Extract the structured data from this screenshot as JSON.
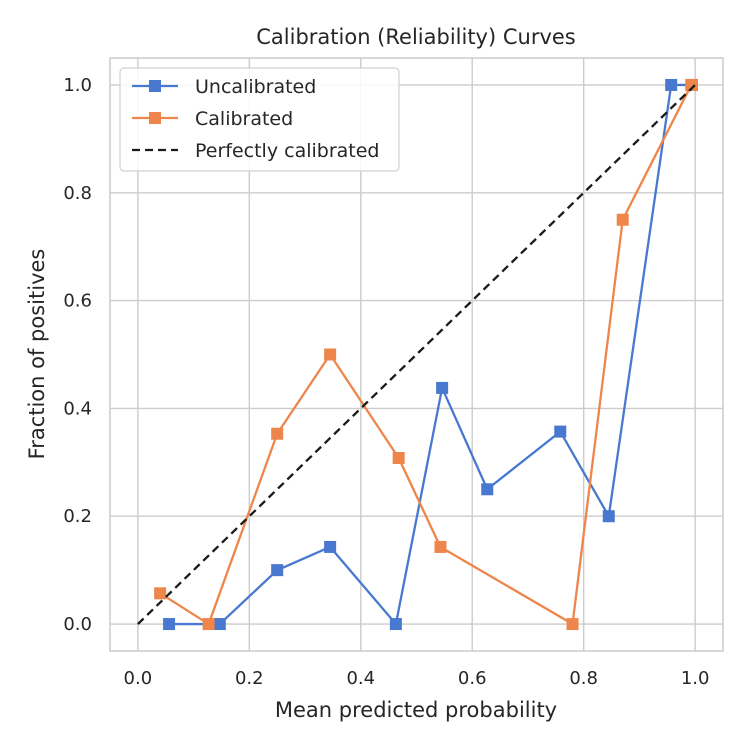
{
  "chart_data": {
    "type": "line",
    "title": "Calibration (Reliability) Curves",
    "xlabel": "Mean predicted probability",
    "ylabel": "Fraction of positives",
    "xlim": [
      -0.05,
      1.05
    ],
    "ylim": [
      -0.05,
      1.05
    ],
    "xticks": [
      0.0,
      0.2,
      0.4,
      0.6,
      0.8,
      1.0
    ],
    "yticks": [
      0.0,
      0.2,
      0.4,
      0.6,
      0.8,
      1.0
    ],
    "xtick_labels": [
      "0.0",
      "0.2",
      "0.4",
      "0.6",
      "0.8",
      "1.0"
    ],
    "ytick_labels": [
      "0.0",
      "0.2",
      "0.4",
      "0.6",
      "0.8",
      "1.0"
    ],
    "grid": true,
    "legend_position": "top-left",
    "series": [
      {
        "name": "Uncalibrated",
        "color": "#4878d0",
        "marker": "square",
        "line_style": "solid",
        "x": [
          0.056,
          0.147,
          0.25,
          0.345,
          0.463,
          0.546,
          0.627,
          0.758,
          0.845,
          0.957,
          0.994
        ],
        "y": [
          0.0,
          0.0,
          0.1,
          0.143,
          0.0,
          0.438,
          0.25,
          0.357,
          0.2,
          1.0,
          1.0
        ]
      },
      {
        "name": "Calibrated",
        "color": "#ee854a",
        "marker": "square",
        "line_style": "solid",
        "x": [
          0.04,
          0.127,
          0.25,
          0.345,
          0.468,
          0.543,
          0.78,
          0.87,
          0.993
        ],
        "y": [
          0.057,
          0.0,
          0.353,
          0.5,
          0.308,
          0.143,
          0.0,
          0.75,
          1.0
        ]
      },
      {
        "name": "Perfectly calibrated",
        "color": "#1a1a1a",
        "marker": "none",
        "line_style": "dashed",
        "x": [
          0.0,
          1.0
        ],
        "y": [
          0.0,
          1.0
        ]
      }
    ]
  }
}
